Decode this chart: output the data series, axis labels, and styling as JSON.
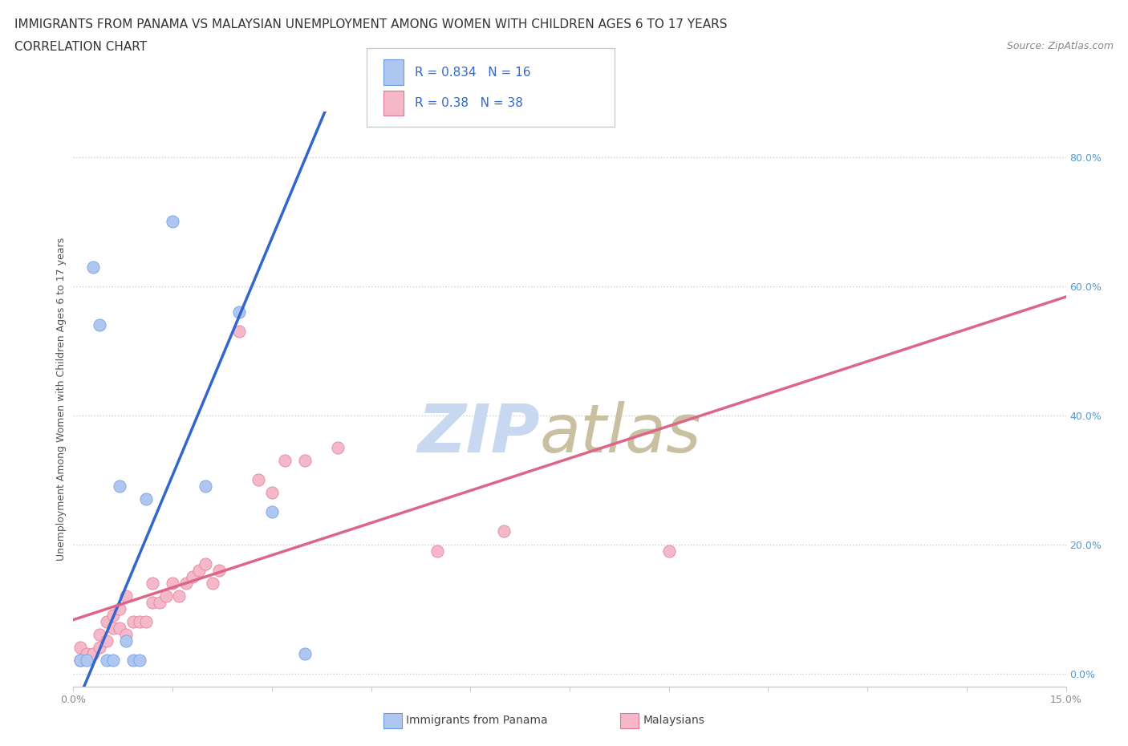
{
  "title": "IMMIGRANTS FROM PANAMA VS MALAYSIAN UNEMPLOYMENT AMONG WOMEN WITH CHILDREN AGES 6 TO 17 YEARS",
  "subtitle": "CORRELATION CHART",
  "source": "Source: ZipAtlas.com",
  "ylabel": "Unemployment Among Women with Children Ages 6 to 17 years",
  "xmin": 0.0,
  "xmax": 0.15,
  "ymin": -0.02,
  "ymax": 0.87,
  "yticks": [
    0.0,
    0.2,
    0.4,
    0.6,
    0.8
  ],
  "ytick_labels": [
    "0.0%",
    "20.0%",
    "40.0%",
    "60.0%",
    "80.0%"
  ],
  "panama_color": "#aec6f0",
  "panama_edge_color": "#6699dd",
  "malaysian_color": "#f4b8c8",
  "malaysian_edge_color": "#dd7799",
  "panama_R": 0.834,
  "panama_N": 16,
  "malaysian_R": 0.38,
  "malaysian_N": 38,
  "panama_line_color": "#3366cc",
  "malaysian_line_color": "#dd6688",
  "panama_scatter_x": [
    0.001,
    0.002,
    0.003,
    0.004,
    0.005,
    0.006,
    0.007,
    0.008,
    0.009,
    0.01,
    0.011,
    0.015,
    0.02,
    0.025,
    0.03,
    0.035
  ],
  "panama_scatter_y": [
    0.02,
    0.02,
    0.63,
    0.54,
    0.02,
    0.02,
    0.29,
    0.05,
    0.02,
    0.02,
    0.27,
    0.7,
    0.29,
    0.56,
    0.25,
    0.03
  ],
  "malaysian_scatter_x": [
    0.001,
    0.001,
    0.002,
    0.003,
    0.004,
    0.004,
    0.005,
    0.005,
    0.006,
    0.006,
    0.007,
    0.007,
    0.008,
    0.008,
    0.009,
    0.01,
    0.011,
    0.012,
    0.012,
    0.013,
    0.014,
    0.015,
    0.016,
    0.017,
    0.018,
    0.019,
    0.02,
    0.021,
    0.022,
    0.025,
    0.028,
    0.03,
    0.032,
    0.035,
    0.04,
    0.055,
    0.065,
    0.09
  ],
  "malaysian_scatter_y": [
    0.02,
    0.04,
    0.03,
    0.03,
    0.04,
    0.06,
    0.05,
    0.08,
    0.07,
    0.09,
    0.07,
    0.1,
    0.06,
    0.12,
    0.08,
    0.08,
    0.08,
    0.11,
    0.14,
    0.11,
    0.12,
    0.14,
    0.12,
    0.14,
    0.15,
    0.16,
    0.17,
    0.14,
    0.16,
    0.53,
    0.3,
    0.28,
    0.33,
    0.33,
    0.35,
    0.19,
    0.22,
    0.19
  ],
  "watermark_zip_color": "#c8d8f0",
  "watermark_atlas_color": "#c8c0a0",
  "grid_color": "#cccccc",
  "bg_color": "#ffffff",
  "title_fontsize": 11,
  "subtitle_fontsize": 11,
  "ylabel_fontsize": 9,
  "tick_fontsize": 9,
  "source_fontsize": 9,
  "scatter_size": 120,
  "panama_line_x0": 0.0,
  "panama_line_x1": 0.038,
  "malaysian_line_x0": 0.0,
  "malaysian_line_x1": 0.15
}
